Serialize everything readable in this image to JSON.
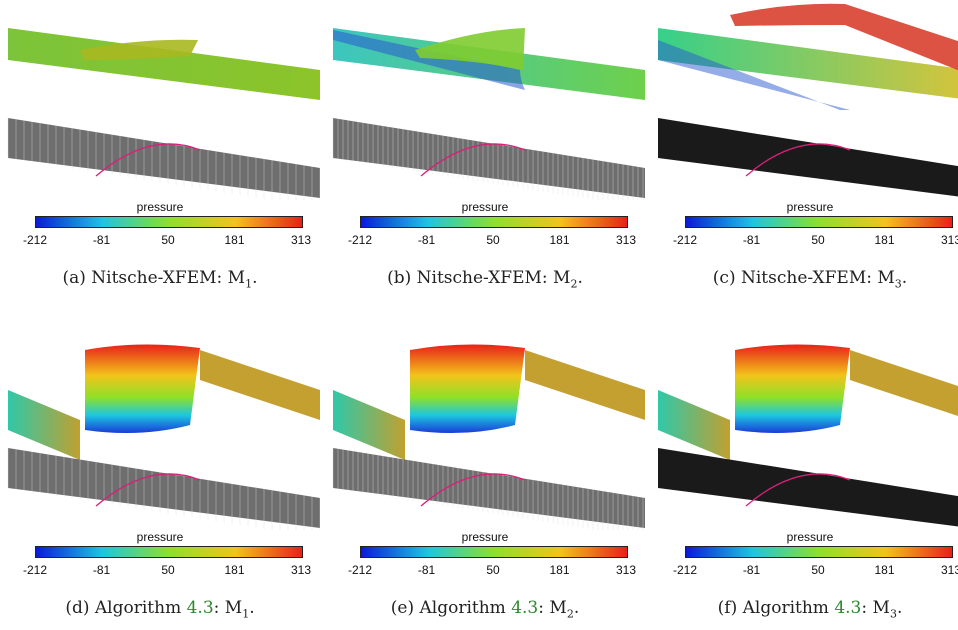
{
  "figure": {
    "colorbar": {
      "title": "pressure",
      "ticks": [
        "-212",
        "-81",
        "50",
        "181",
        "313"
      ],
      "gradient": [
        "#0a1ad8",
        "#1cc6e0",
        "#8ee02a",
        "#f2c41a",
        "#e8201a"
      ]
    },
    "panels": [
      {
        "tag": "(a)",
        "method": "Nitsche-XFEM:",
        "ref": "",
        "mesh": "M",
        "sub": "1",
        "variant": "xfem",
        "level": 1
      },
      {
        "tag": "(b)",
        "method": "Nitsche-XFEM:",
        "ref": "",
        "mesh": "M",
        "sub": "2",
        "variant": "xfem",
        "level": 2
      },
      {
        "tag": "(c)",
        "method": "Nitsche-XFEM:",
        "ref": "",
        "mesh": "M",
        "sub": "3",
        "variant": "xfem",
        "level": 3
      },
      {
        "tag": "(d)",
        "method": "Algorithm",
        "ref": "4.3",
        "mesh": "M",
        "sub": "1",
        "variant": "alg",
        "level": 1
      },
      {
        "tag": "(e)",
        "method": "Algorithm",
        "ref": "4.3",
        "mesh": "M",
        "sub": "2",
        "variant": "alg",
        "level": 2
      },
      {
        "tag": "(f)",
        "method": "Algorithm",
        "ref": "4.3",
        "mesh": "M",
        "sub": "3",
        "variant": "alg",
        "level": 3
      }
    ]
  }
}
